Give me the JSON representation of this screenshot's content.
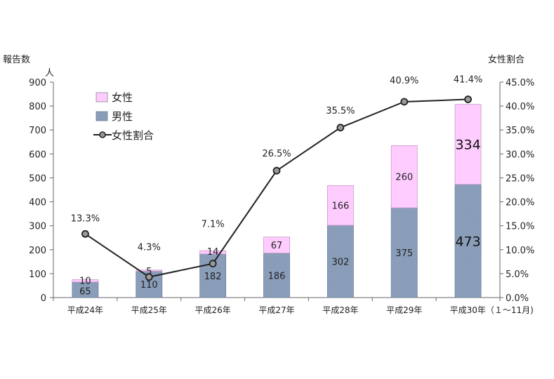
{
  "chart_data": {
    "type": "bar",
    "stacked": true,
    "y_left_label": "報告数",
    "y_left_unit": "人",
    "y_right_label": "女性割合",
    "categories": [
      "平成24年",
      "平成25年",
      "平成26年",
      "平成27年",
      "平成28年",
      "平成29年",
      "平成30年（１～11月)"
    ],
    "ylim_left": [
      0,
      900
    ],
    "yticks_left": [
      "0",
      "100",
      "200",
      "300",
      "400",
      "500",
      "600",
      "700",
      "800",
      "900"
    ],
    "ylim_right": [
      0,
      45
    ],
    "yticks_right": [
      "0.0%",
      "5.0%",
      "10.0%",
      "15.0%",
      "20.0%",
      "25.0%",
      "30.0%",
      "35.0%",
      "40.0%",
      "45.0%"
    ],
    "series": [
      {
        "name": "男性",
        "kind": "bar",
        "color": "#8fa3bf",
        "values": [
          65,
          110,
          182,
          186,
          302,
          375,
          473
        ]
      },
      {
        "name": "女性",
        "kind": "bar",
        "color": "#ffccff",
        "values": [
          10,
          5,
          14,
          67,
          166,
          260,
          334
        ]
      },
      {
        "name": "女性割合",
        "kind": "line",
        "axis": "right",
        "color": "#222222",
        "values": [
          13.3,
          4.3,
          7.1,
          26.5,
          35.5,
          40.9,
          41.4
        ],
        "labels": [
          "13.3%",
          "4.3%",
          "7.1%",
          "26.5%",
          "35.5%",
          "40.9%",
          "41.4%"
        ]
      }
    ],
    "legend": {
      "position": "top-left",
      "items": [
        "女性",
        "男性",
        "女性割合"
      ]
    },
    "grid": false
  }
}
